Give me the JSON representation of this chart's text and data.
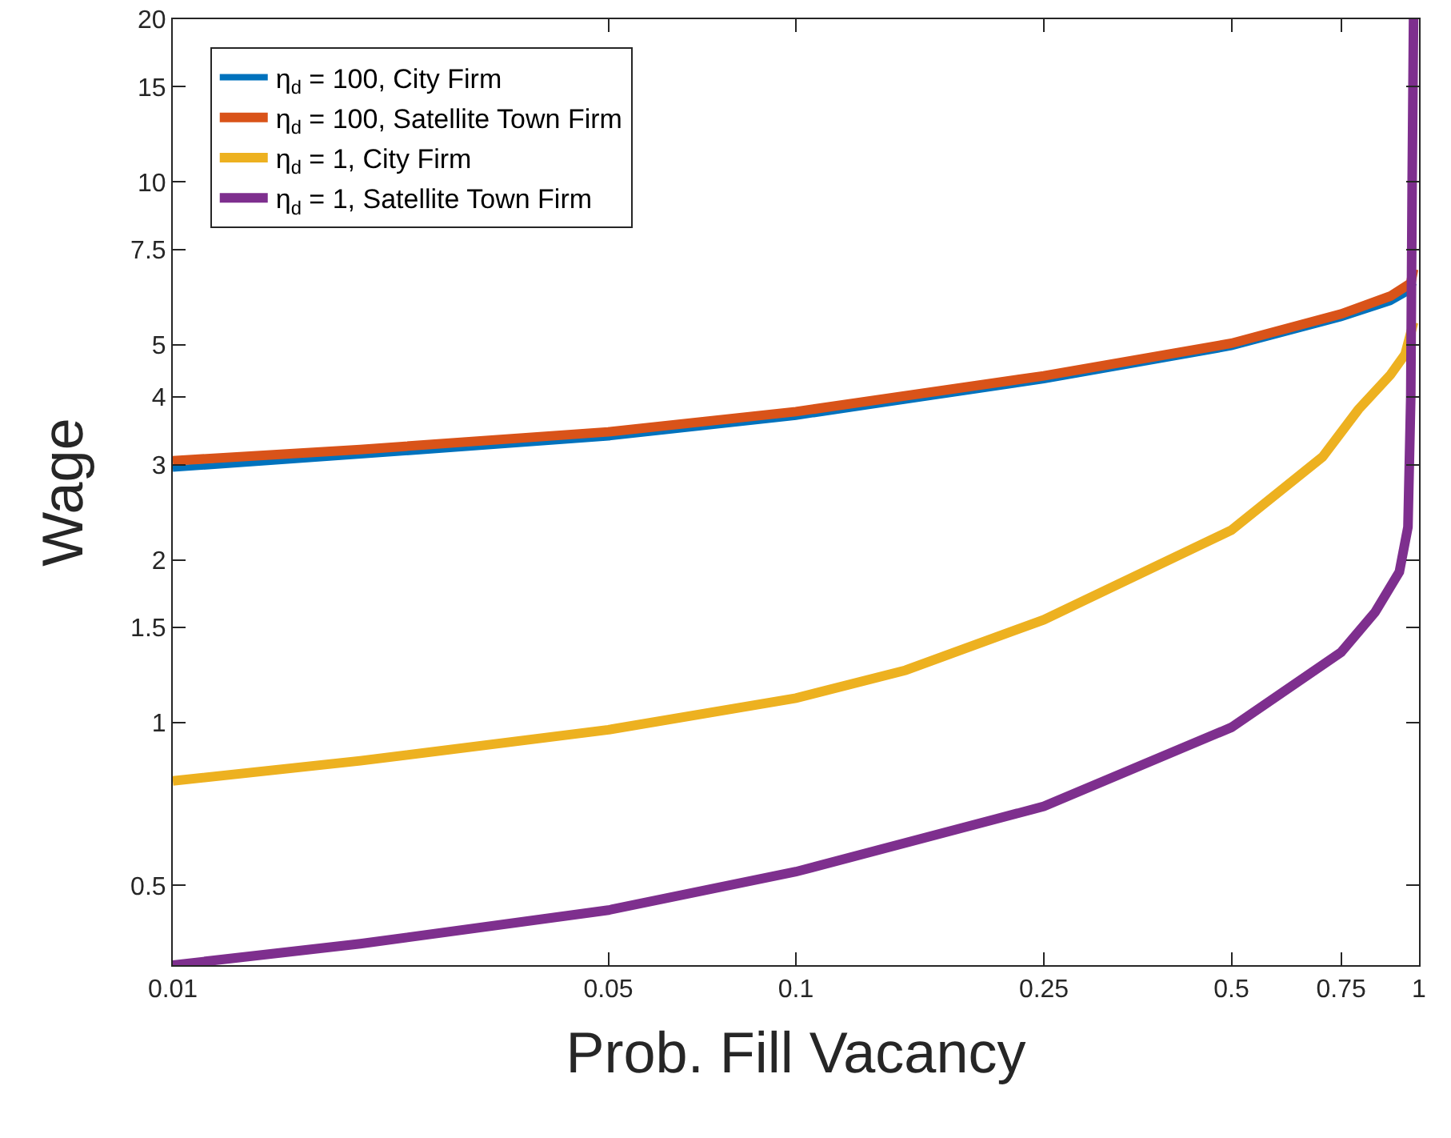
{
  "chart_data": {
    "type": "line",
    "xlabel": "Prob. Fill Vacancy",
    "ylabel": "Wage",
    "log": "xy",
    "grid": false,
    "legend": "top left",
    "marker": "none",
    "line_style": "solid",
    "xlim": [
      0.01,
      1
    ],
    "xticks": [
      0.01,
      0.05,
      0.1,
      0.25,
      0.5,
      0.75,
      1
    ],
    "ylim": [
      0.356,
      20
    ],
    "yticks": [
      0.5,
      1,
      1.5,
      2,
      3,
      4,
      5,
      7.5,
      10,
      15,
      20
    ],
    "series": [
      {
        "name": "η$_{d}$ = 100, City Firm",
        "color": "#0072bd",
        "x": [
          0.01,
          0.02,
          0.05,
          0.1,
          0.25,
          0.5,
          0.75,
          0.9,
          0.97,
          0.98
        ],
        "values": [
          2.95,
          3.12,
          3.37,
          3.68,
          4.3,
          4.95,
          5.6,
          6.0,
          6.3,
          6.5
        ]
      },
      {
        "name": "η$_{d}$ = 100, Satellite Town Firm",
        "color": "#d95319",
        "x": [
          0.01,
          0.02,
          0.05,
          0.1,
          0.25,
          0.5,
          0.75,
          0.9,
          0.97,
          0.98
        ],
        "values": [
          3.05,
          3.2,
          3.45,
          3.76,
          4.38,
          5.03,
          5.7,
          6.15,
          6.5,
          6.9
        ]
      },
      {
        "name": "η$_{d}$ = 1, City Firm",
        "color": "#edb120",
        "x": [
          0.01,
          0.02,
          0.05,
          0.1,
          0.15,
          0.25,
          0.5,
          0.7,
          0.8,
          0.9,
          0.95,
          0.98
        ],
        "values": [
          0.78,
          0.85,
          0.97,
          1.11,
          1.25,
          1.55,
          2.27,
          3.1,
          3.8,
          4.4,
          4.8,
          5.5
        ]
      },
      {
        "name": "η$_{d}$ = 1, Satellite Town Firm",
        "color": "#7e2f8e",
        "x": [
          0.01,
          0.02,
          0.05,
          0.1,
          0.25,
          0.5,
          0.75,
          0.85,
          0.93,
          0.96,
          0.97,
          0.975,
          0.98
        ],
        "values": [
          0.356,
          0.39,
          0.45,
          0.53,
          0.7,
          0.98,
          1.35,
          1.6,
          1.9,
          2.3,
          4,
          10,
          20
        ]
      }
    ]
  }
}
